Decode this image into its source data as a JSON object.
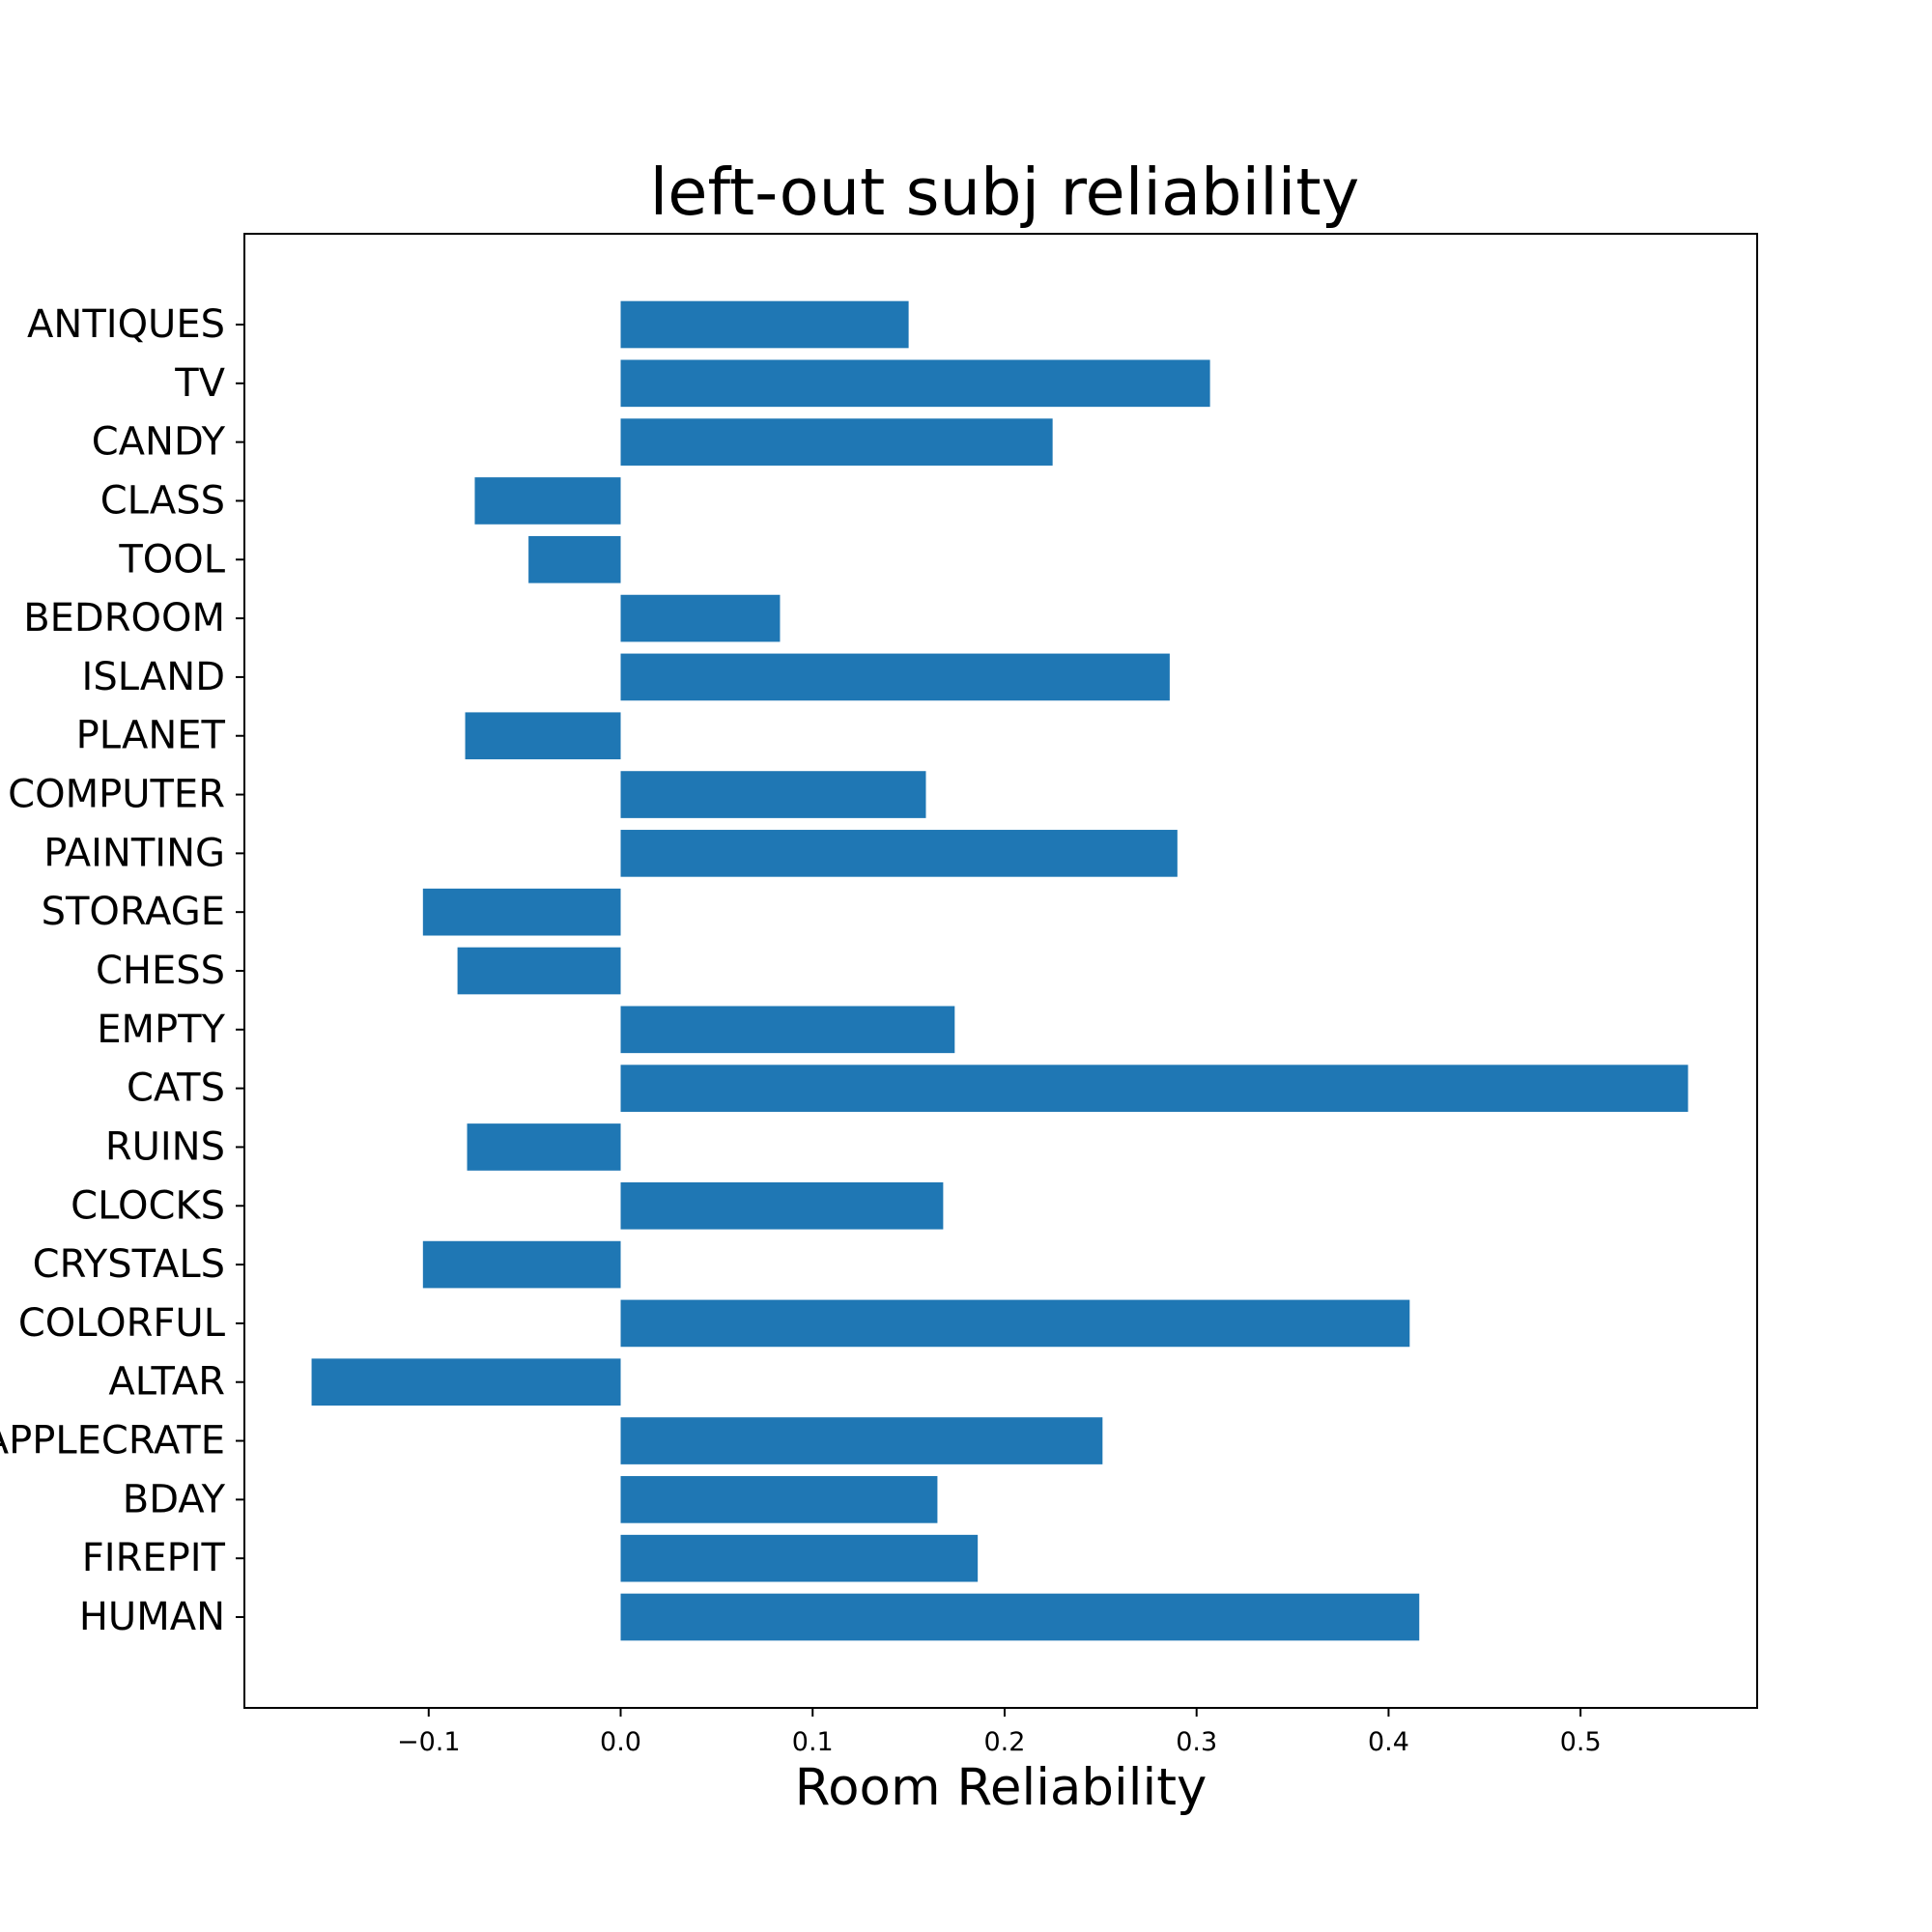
{
  "chart_data": {
    "type": "bar",
    "orientation": "horizontal",
    "title": "left-out subj reliability",
    "xlabel": "Room Reliability",
    "ylabel": "",
    "categories": [
      "ANTIQUES",
      "TV",
      "CANDY",
      "CLASS",
      "TOOL",
      "BEDROOM",
      "ISLAND",
      "PLANET",
      "COMPUTER",
      "PAINTING",
      "STORAGE",
      "CHESS",
      "EMPTY",
      "CATS",
      "RUINS",
      "CLOCKS",
      "CRYSTALS",
      "COLORFUL",
      "ALTAR",
      "APPLECRATE",
      "BDAY",
      "FIREPIT",
      "HUMAN"
    ],
    "values": [
      0.15,
      0.307,
      0.225,
      -0.076,
      -0.048,
      0.083,
      0.286,
      -0.081,
      0.159,
      0.29,
      -0.103,
      -0.085,
      0.174,
      0.556,
      -0.08,
      0.168,
      -0.103,
      0.411,
      -0.161,
      0.251,
      0.165,
      0.186,
      0.416
    ],
    "xlim": [
      -0.196,
      0.592
    ],
    "xticks": [
      -0.1,
      0.0,
      0.1,
      0.2,
      0.3,
      0.4,
      0.5
    ],
    "xtick_labels": [
      "−0.1",
      "0.0",
      "0.1",
      "0.2",
      "0.3",
      "0.4",
      "0.5"
    ],
    "grid": false,
    "legend": "none",
    "bar_color": "#1f77b4"
  }
}
